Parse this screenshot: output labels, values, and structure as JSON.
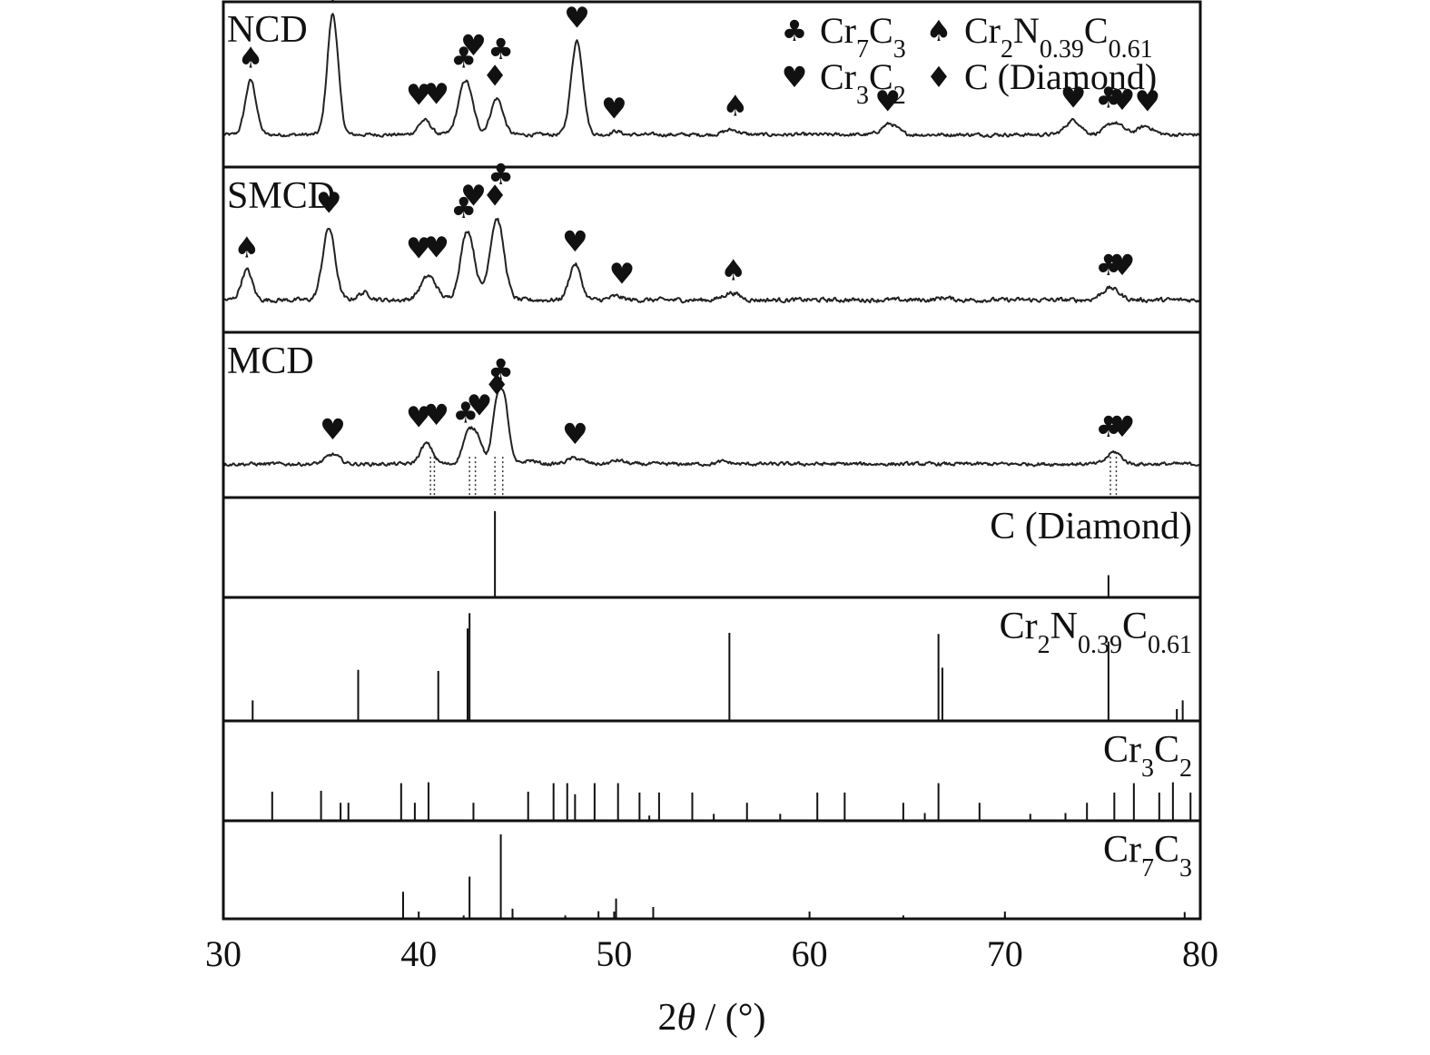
{
  "chart_data": {
    "type": "line",
    "xlabel": "2θ / (°)",
    "xlim": [
      30,
      80
    ],
    "xticks": [
      "30",
      "40",
      "50",
      "60",
      "70",
      "80"
    ],
    "legend": {
      "placement": "top-right",
      "entries": [
        {
          "symbol": "♣",
          "icon": "club-icon",
          "label": "Cr7C3",
          "html": "Cr<tspan baseline-shift=\"sub\" font-size=\"28\">7</tspan>C<tspan baseline-shift=\"sub\" font-size=\"28\">3</tspan>"
        },
        {
          "symbol": "♠",
          "icon": "spade-icon",
          "label": "Cr2N0.39C0.61",
          "html": "Cr<tspan baseline-shift=\"sub\" font-size=\"28\">2</tspan>N<tspan baseline-shift=\"sub\" font-size=\"28\">0.39</tspan>C<tspan baseline-shift=\"sub\" font-size=\"28\">0.61</tspan>"
        },
        {
          "symbol": "♥",
          "icon": "heart-icon",
          "label": "Cr3C2",
          "html": "Cr<tspan baseline-shift=\"sub\" font-size=\"28\">3</tspan>C<tspan baseline-shift=\"sub\" font-size=\"28\">2</tspan>"
        },
        {
          "symbol": "♦",
          "icon": "diamond-icon",
          "label": "C (Diamond)",
          "html": "C (Diamond)"
        }
      ]
    },
    "series": [
      {
        "name": "NCD",
        "baseline": 0.05,
        "noise": 0.012,
        "peaks": [
          [
            31.4,
            0.45,
            0.35
          ],
          [
            35.6,
            1.0,
            0.35
          ],
          [
            40.3,
            0.12,
            0.4
          ],
          [
            42.4,
            0.45,
            0.45
          ],
          [
            44.0,
            0.3,
            0.4
          ],
          [
            48.1,
            0.78,
            0.38
          ],
          [
            50.1,
            0.03,
            0.3
          ],
          [
            56.0,
            0.04,
            0.5
          ],
          [
            64.1,
            0.09,
            0.5
          ],
          [
            73.5,
            0.12,
            0.5
          ],
          [
            75.6,
            0.1,
            0.55
          ],
          [
            77.2,
            0.07,
            0.5
          ]
        ],
        "markers": [
          {
            "symbol": "♠",
            "x": 31.4,
            "h": 0.45
          },
          {
            "symbol": "♥",
            "x": 35.6,
            "h": 1.0
          },
          {
            "symbol": "♥",
            "x": 40.0,
            "h": 0.14
          },
          {
            "symbol": "♥",
            "x": 40.9,
            "h": 0.15
          },
          {
            "symbol": "♣",
            "x": 42.3,
            "h": 0.45
          },
          {
            "symbol": "♥",
            "x": 42.8,
            "h": 0.55
          },
          {
            "symbol": "♦",
            "x": 43.9,
            "h": 0.3
          },
          {
            "symbol": "♣",
            "x": 44.2,
            "h": 0.52
          },
          {
            "symbol": "♥",
            "x": 48.1,
            "h": 0.78
          },
          {
            "symbol": "♥",
            "x": 50.0,
            "h": 0.03
          },
          {
            "symbol": "♠",
            "x": 56.2,
            "h": 0.05
          },
          {
            "symbol": "♥",
            "x": 64.0,
            "h": 0.09
          },
          {
            "symbol": "♥",
            "x": 73.5,
            "h": 0.12
          },
          {
            "symbol": "♣",
            "x": 75.3,
            "h": 0.12
          },
          {
            "symbol": "♥",
            "x": 76.0,
            "h": 0.1
          },
          {
            "symbol": "♥",
            "x": 77.3,
            "h": 0.09
          }
        ]
      },
      {
        "name": "SMCD",
        "baseline": 0.05,
        "noise": 0.015,
        "peaks": [
          [
            31.2,
            0.25,
            0.35
          ],
          [
            35.4,
            0.6,
            0.4
          ],
          [
            37.2,
            0.06,
            0.4
          ],
          [
            40.5,
            0.2,
            0.5
          ],
          [
            42.5,
            0.58,
            0.45
          ],
          [
            44.0,
            0.68,
            0.45
          ],
          [
            48.0,
            0.3,
            0.38
          ],
          [
            50.1,
            0.03,
            0.4
          ],
          [
            56.0,
            0.06,
            0.5
          ],
          [
            66.9,
            0.02,
            0.4
          ],
          [
            75.4,
            0.1,
            0.55
          ]
        ],
        "markers": [
          {
            "symbol": "♠",
            "x": 31.2,
            "h": 0.25
          },
          {
            "symbol": "♥",
            "x": 35.4,
            "h": 0.62
          },
          {
            "symbol": "♥",
            "x": 40.0,
            "h": 0.24
          },
          {
            "symbol": "♥",
            "x": 40.9,
            "h": 0.25
          },
          {
            "symbol": "♣",
            "x": 42.3,
            "h": 0.58
          },
          {
            "symbol": "♥",
            "x": 42.8,
            "h": 0.68
          },
          {
            "symbol": "♦",
            "x": 43.9,
            "h": 0.68
          },
          {
            "symbol": "♣",
            "x": 44.2,
            "h": 0.86
          },
          {
            "symbol": "♥",
            "x": 48.0,
            "h": 0.3
          },
          {
            "symbol": "♥",
            "x": 50.4,
            "h": 0.03
          },
          {
            "symbol": "♠",
            "x": 56.1,
            "h": 0.06
          },
          {
            "symbol": "♣",
            "x": 75.3,
            "h": 0.1
          },
          {
            "symbol": "♥",
            "x": 76.0,
            "h": 0.1
          }
        ]
      },
      {
        "name": "MCD",
        "baseline": 0.06,
        "noise": 0.012,
        "peaks": [
          [
            35.6,
            0.08,
            0.45
          ],
          [
            40.4,
            0.17,
            0.4
          ],
          [
            42.5,
            0.23,
            0.35
          ],
          [
            43.0,
            0.22,
            0.35
          ],
          [
            44.0,
            0.47,
            0.3
          ],
          [
            44.4,
            0.45,
            0.3
          ],
          [
            45.7,
            0.03,
            0.4
          ],
          [
            48.0,
            0.05,
            0.5
          ],
          [
            50.2,
            0.03,
            0.4
          ],
          [
            55.6,
            0.02,
            0.4
          ],
          [
            75.6,
            0.1,
            0.45
          ]
        ],
        "markers": [
          {
            "symbol": "♥",
            "x": 35.6,
            "h": 0.1
          },
          {
            "symbol": "♥",
            "x": 40.0,
            "h": 0.2
          },
          {
            "symbol": "♥",
            "x": 40.9,
            "h": 0.22
          },
          {
            "symbol": "♣",
            "x": 42.4,
            "h": 0.24
          },
          {
            "symbol": "♥",
            "x": 43.1,
            "h": 0.3
          },
          {
            "symbol": "♦",
            "x": 44.0,
            "h": 0.47
          },
          {
            "symbol": "♣",
            "x": 44.2,
            "h": 0.6
          },
          {
            "symbol": "♥",
            "x": 48.0,
            "h": 0.06
          },
          {
            "symbol": "♣",
            "x": 75.3,
            "h": 0.12
          },
          {
            "symbol": "♥",
            "x": 76.0,
            "h": 0.12
          }
        ],
        "guides": [
          40.6,
          40.8,
          42.6,
          42.9,
          43.9,
          44.3,
          75.4,
          75.7
        ]
      }
    ],
    "reference_patterns": [
      {
        "name": "C (Diamond)",
        "html": "C (Diamond)",
        "lines": [
          [
            43.9,
            1.0
          ],
          [
            75.3,
            0.25
          ]
        ]
      },
      {
        "name": "Cr2N0.39C0.61",
        "html": "Cr<tspan baseline-shift=\"sub\" font-size=\"28\">2</tspan>N<tspan baseline-shift=\"sub\" font-size=\"28\">0.39</tspan>C<tspan baseline-shift=\"sub\" font-size=\"28\">0.61</tspan>",
        "lines": [
          [
            31.5,
            0.18
          ],
          [
            36.9,
            0.46
          ],
          [
            41.0,
            0.45
          ],
          [
            42.5,
            0.84
          ],
          [
            42.6,
            0.98
          ],
          [
            55.9,
            0.8
          ],
          [
            66.6,
            0.79
          ],
          [
            66.8,
            0.48
          ],
          [
            75.3,
            0.72
          ],
          [
            78.8,
            0.1
          ],
          [
            79.1,
            0.18
          ]
        ]
      },
      {
        "name": "Cr3C2",
        "html": "Cr<tspan baseline-shift=\"sub\" font-size=\"28\">3</tspan>C<tspan baseline-shift=\"sub\" font-size=\"28\">2</tspan>",
        "lines": [
          [
            32.5,
            0.33
          ],
          [
            35.0,
            0.34
          ],
          [
            36.0,
            0.2
          ],
          [
            36.4,
            0.2
          ],
          [
            39.1,
            0.43
          ],
          [
            39.8,
            0.2
          ],
          [
            40.5,
            0.44
          ],
          [
            42.8,
            0.2
          ],
          [
            45.6,
            0.33
          ],
          [
            46.9,
            0.43
          ],
          [
            47.6,
            0.43
          ],
          [
            48.0,
            0.3
          ],
          [
            49.0,
            0.43
          ],
          [
            50.2,
            0.43
          ],
          [
            51.3,
            0.32
          ],
          [
            51.8,
            0.05
          ],
          [
            52.3,
            0.32
          ],
          [
            54.0,
            0.32
          ],
          [
            55.1,
            0.07
          ],
          [
            56.8,
            0.2
          ],
          [
            58.5,
            0.07
          ],
          [
            60.4,
            0.32
          ],
          [
            61.8,
            0.32
          ],
          [
            64.8,
            0.2
          ],
          [
            65.9,
            0.08
          ],
          [
            66.6,
            0.43
          ],
          [
            68.7,
            0.2
          ],
          [
            71.3,
            0.07
          ],
          [
            73.1,
            0.08
          ],
          [
            74.2,
            0.2
          ],
          [
            75.6,
            0.32
          ],
          [
            76.6,
            0.43
          ],
          [
            77.9,
            0.32
          ],
          [
            78.6,
            0.44
          ],
          [
            79.5,
            0.32
          ],
          [
            80.0,
            0.1
          ]
        ]
      },
      {
        "name": "Cr7C3",
        "html": "Cr<tspan baseline-shift=\"sub\" font-size=\"28\">7</tspan>C<tspan baseline-shift=\"sub\" font-size=\"28\">3</tspan>",
        "lines": [
          [
            39.2,
            0.32
          ],
          [
            42.3,
            0.04
          ],
          [
            42.6,
            0.5
          ],
          [
            44.2,
            1.0
          ],
          [
            44.8,
            0.12
          ],
          [
            47.5,
            0.04
          ],
          [
            49.2,
            0.09
          ],
          [
            50.1,
            0.24
          ],
          [
            52.0,
            0.14
          ],
          [
            64.8,
            0.04
          ],
          [
            70.0,
            0.04
          ],
          [
            79.2,
            0.08
          ]
        ]
      }
    ]
  }
}
